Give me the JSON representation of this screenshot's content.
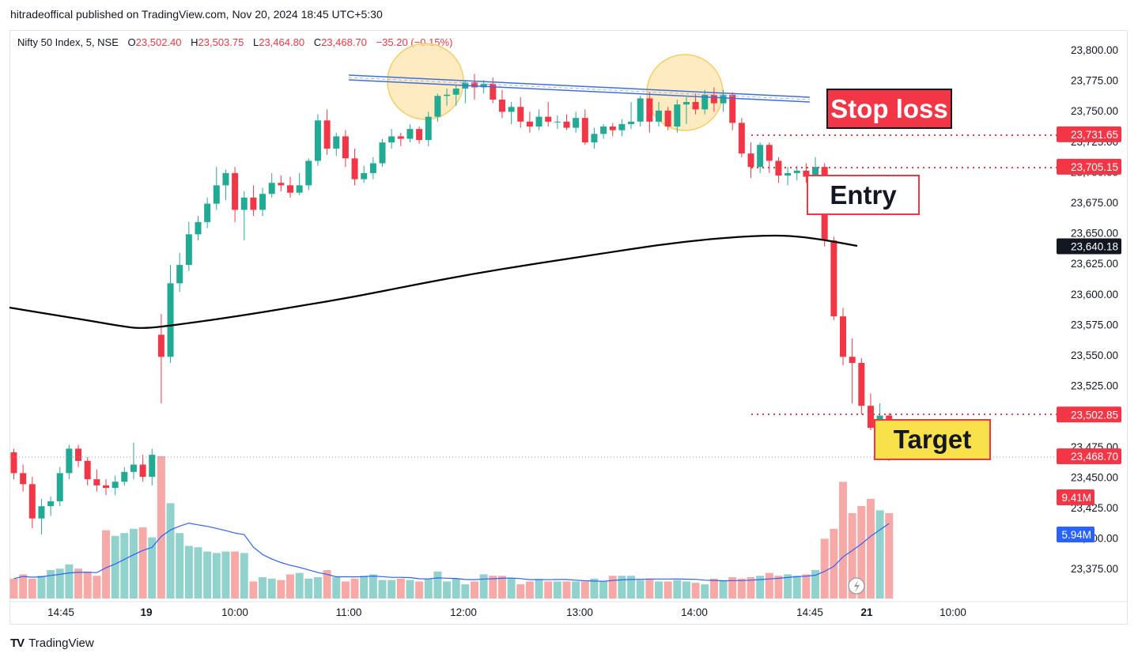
{
  "caption": "hitradeoffical published on TradingView.com, Nov 20, 2024 18:45 UTC+5:30",
  "legend": {
    "symbol": "Nifty 50 Index, 5, NSE",
    "open_label": "O",
    "open": "23,502.40",
    "high_label": "H",
    "high": "23,503.75",
    "low_label": "L",
    "low": "23,464.80",
    "close_label": "C",
    "close": "23,468.70",
    "change": "−35.20 (−0.15%)"
  },
  "annotations": {
    "stop_loss": "Stop loss",
    "entry": "Entry",
    "target": "Target"
  },
  "footer": {
    "brand": "TradingView",
    "logo_icon": "tradingview-logo-icon"
  },
  "colors": {
    "up": "#22ab94",
    "down": "#f23645",
    "ma": "#000000",
    "vol_ma": "#2962ff",
    "trendline": "#3f6fdc",
    "highlight": "#fde3a7"
  },
  "chart_data": {
    "type": "candlestick",
    "symbol": "Nifty 50 Index",
    "interval": "5",
    "exchange": "NSE",
    "x_ticks": [
      "14:45",
      "19",
      "10:00",
      "11:00",
      "12:00",
      "13:00",
      "14:00",
      "14:45",
      "21",
      "10:00"
    ],
    "y_ticks": [
      "23,800.00",
      "23,775.00",
      "23,750.00",
      "23,725.00",
      "23,700.00",
      "23,675.00",
      "23,650.00",
      "23,625.00",
      "23,600.00",
      "23,575.00",
      "23,550.00",
      "23,525.00",
      "23,500.00",
      "23,475.00",
      "23,450.00",
      "23,425.00",
      "23,400.00",
      "23,375.00"
    ],
    "ylim": [
      23362,
      23812
    ],
    "price_labels": [
      {
        "text": "23,731.65",
        "value": 23731.65,
        "kind": "stop_loss"
      },
      {
        "text": "23,705.15",
        "value": 23705.15,
        "kind": "entry"
      },
      {
        "text": "23,640.18",
        "value": 23640.18,
        "kind": "ma"
      },
      {
        "text": "23,502.85",
        "value": 23502.85,
        "kind": "target"
      },
      {
        "text": "23,468.70",
        "value": 23468.7,
        "kind": "last"
      }
    ],
    "volume_labels": [
      {
        "text": "9.41M",
        "kind": "volume"
      },
      {
        "text": "5.94M",
        "kind": "volume_ma"
      }
    ],
    "candles_ohlc": [
      [
        23472,
        23475,
        23450,
        23455
      ],
      [
        23455,
        23462,
        23440,
        23446
      ],
      [
        23446,
        23452,
        23410,
        23418
      ],
      [
        23418,
        23434,
        23405,
        23428
      ],
      [
        23428,
        23436,
        23420,
        23432
      ],
      [
        23432,
        23460,
        23428,
        23455
      ],
      [
        23455,
        23478,
        23450,
        23475
      ],
      [
        23475,
        23478,
        23460,
        23465
      ],
      [
        23465,
        23468,
        23445,
        23450
      ],
      [
        23450,
        23458,
        23440,
        23445
      ],
      [
        23445,
        23450,
        23437,
        23443
      ],
      [
        23443,
        23453,
        23437,
        23448
      ],
      [
        23448,
        23460,
        23445,
        23456
      ],
      [
        23456,
        23480,
        23450,
        23462
      ],
      [
        23462,
        23470,
        23448,
        23452
      ],
      [
        23452,
        23475,
        23445,
        23470
      ],
      [
        23568,
        23585,
        23512,
        23550
      ],
      [
        23550,
        23625,
        23545,
        23610
      ],
      [
        23610,
        23635,
        23603,
        23625
      ],
      [
        23625,
        23660,
        23620,
        23650
      ],
      [
        23650,
        23665,
        23645,
        23660
      ],
      [
        23660,
        23680,
        23655,
        23675
      ],
      [
        23675,
        23705,
        23670,
        23690
      ],
      [
        23690,
        23703,
        23678,
        23700
      ],
      [
        23700,
        23705,
        23660,
        23670
      ],
      [
        23670,
        23685,
        23645,
        23680
      ],
      [
        23680,
        23690,
        23665,
        23670
      ],
      [
        23670,
        23688,
        23665,
        23683
      ],
      [
        23683,
        23700,
        23680,
        23692
      ],
      [
        23692,
        23698,
        23685,
        23690
      ],
      [
        23690,
        23697,
        23680,
        23684
      ],
      [
        23684,
        23700,
        23682,
        23690
      ],
      [
        23690,
        23712,
        23686,
        23710
      ],
      [
        23710,
        23748,
        23706,
        23743
      ],
      [
        23743,
        23752,
        23715,
        23720
      ],
      [
        23720,
        23733,
        23714,
        23730
      ],
      [
        23730,
        23735,
        23705,
        23712
      ],
      [
        23712,
        23720,
        23690,
        23695
      ],
      [
        23695,
        23706,
        23692,
        23700
      ],
      [
        23700,
        23713,
        23695,
        23708
      ],
      [
        23708,
        23728,
        23705,
        23725
      ],
      [
        23725,
        23736,
        23720,
        23730
      ],
      [
        23730,
        23733,
        23722,
        23728
      ],
      [
        23728,
        23740,
        23725,
        23736
      ],
      [
        23736,
        23738,
        23724,
        23727
      ],
      [
        23727,
        23750,
        23722,
        23746
      ],
      [
        23746,
        23765,
        23742,
        23763
      ],
      [
        23763,
        23769,
        23755,
        23764
      ],
      [
        23764,
        23772,
        23755,
        23769
      ],
      [
        23769,
        23776,
        23757,
        23774
      ],
      [
        23774,
        23781,
        23760,
        23770
      ],
      [
        23770,
        23776,
        23765,
        23773
      ],
      [
        23773,
        23778,
        23757,
        23760
      ],
      [
        23760,
        23768,
        23745,
        23750
      ],
      [
        23750,
        23758,
        23740,
        23754
      ],
      [
        23754,
        23762,
        23737,
        23742
      ],
      [
        23742,
        23750,
        23733,
        23738
      ],
      [
        23738,
        23752,
        23735,
        23746
      ],
      [
        23746,
        23758,
        23738,
        23742
      ],
      [
        23742,
        23747,
        23736,
        23742
      ],
      [
        23742,
        23748,
        23735,
        23737
      ],
      [
        23737,
        23750,
        23733,
        23745
      ],
      [
        23745,
        23752,
        23723,
        23725
      ],
      [
        23725,
        23737,
        23720,
        23732
      ],
      [
        23732,
        23740,
        23728,
        23738
      ],
      [
        23738,
        23741,
        23730,
        23735
      ],
      [
        23735,
        23744,
        23730,
        23740
      ],
      [
        23740,
        23758,
        23736,
        23742
      ],
      [
        23742,
        23763,
        23738,
        23761
      ],
      [
        23761,
        23766,
        23733,
        23742
      ],
      [
        23742,
        23758,
        23738,
        23751
      ],
      [
        23751,
        23754,
        23735,
        23738
      ],
      [
        23738,
        23760,
        23733,
        23756
      ],
      [
        23756,
        23762,
        23740,
        23758
      ],
      [
        23758,
        23765,
        23748,
        23752
      ],
      [
        23752,
        23768,
        23748,
        23764
      ],
      [
        23764,
        23770,
        23750,
        23757
      ],
      [
        23757,
        23768,
        23750,
        23764
      ],
      [
        23764,
        23766,
        23735,
        23741
      ],
      [
        23741,
        23745,
        23713,
        23716
      ],
      [
        23716,
        23725,
        23696,
        23705
      ],
      [
        23705,
        23725,
        23700,
        23723
      ],
      [
        23723,
        23725,
        23700,
        23710
      ],
      [
        23710,
        23713,
        23692,
        23698
      ],
      [
        23698,
        23705,
        23690,
        23700
      ],
      [
        23700,
        23706,
        23694,
        23702
      ],
      [
        23702,
        23708,
        23692,
        23697
      ],
      [
        23697,
        23713,
        23694,
        23705
      ],
      [
        23705,
        23708,
        23640,
        23645
      ],
      [
        23645,
        23648,
        23580,
        23583
      ],
      [
        23583,
        23590,
        23543,
        23550
      ],
      [
        23550,
        23565,
        23512,
        23545
      ],
      [
        23545,
        23549,
        23503,
        23510
      ],
      [
        23510,
        23520,
        23490,
        23492
      ],
      [
        23492,
        23512,
        23484,
        23502
      ],
      [
        23502,
        23504,
        23465,
        23469
      ]
    ],
    "volume_relative": [
      0.14,
      0.17,
      0.14,
      0.16,
      0.2,
      0.21,
      0.24,
      0.21,
      0.19,
      0.16,
      0.48,
      0.44,
      0.46,
      0.49,
      0.5,
      0.43,
      1.0,
      0.67,
      0.46,
      0.37,
      0.36,
      0.33,
      0.32,
      0.33,
      0.33,
      0.32,
      0.12,
      0.15,
      0.14,
      0.13,
      0.17,
      0.18,
      0.14,
      0.15,
      0.2,
      0.15,
      0.12,
      0.14,
      0.16,
      0.17,
      0.13,
      0.13,
      0.14,
      0.13,
      0.12,
      0.14,
      0.19,
      0.12,
      0.14,
      0.1,
      0.12,
      0.17,
      0.16,
      0.16,
      0.14,
      0.1,
      0.12,
      0.13,
      0.12,
      0.12,
      0.12,
      0.12,
      0.12,
      0.14,
      0.12,
      0.16,
      0.16,
      0.16,
      0.13,
      0.14,
      0.12,
      0.12,
      0.13,
      0.12,
      0.11,
      0.1,
      0.14,
      0.13,
      0.15,
      0.14,
      0.15,
      0.16,
      0.18,
      0.16,
      0.17,
      0.16,
      0.17,
      0.2,
      0.42,
      0.49,
      0.82,
      0.6,
      0.65,
      0.7,
      0.62,
      0.6
    ]
  }
}
